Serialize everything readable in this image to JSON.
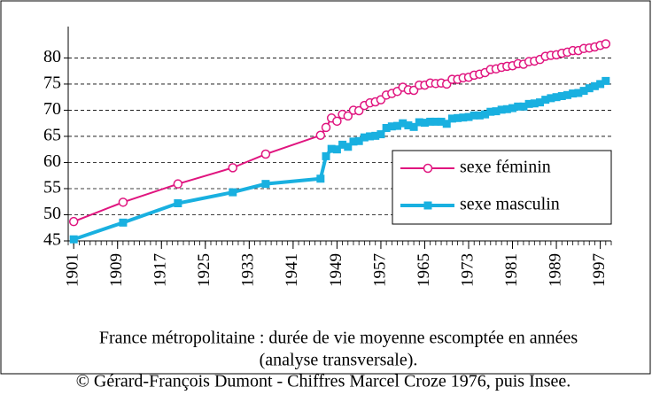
{
  "chart_data": {
    "type": "line",
    "caption": "France métropolitaine : durée de vie moyenne escomptée en années",
    "caption2": "(analyse transversale).",
    "credit": "© Gérard-François Dumont - Chiffres Marcel Croze 1976, puis Insee.",
    "x": [
      1901,
      1910,
      1920,
      1930,
      1936,
      1946,
      1947,
      1948,
      1949,
      1950,
      1951,
      1952,
      1953,
      1954,
      1955,
      1956,
      1957,
      1958,
      1959,
      1960,
      1961,
      1962,
      1963,
      1964,
      1965,
      1966,
      1967,
      1968,
      1969,
      1970,
      1971,
      1972,
      1973,
      1974,
      1975,
      1976,
      1977,
      1978,
      1979,
      1980,
      1981,
      1982,
      1983,
      1984,
      1985,
      1986,
      1987,
      1988,
      1989,
      1990,
      1991,
      1992,
      1993,
      1994,
      1995,
      1996,
      1997,
      1998
    ],
    "series": [
      {
        "name": "sexe féminin",
        "color": "#e0157f",
        "marker": "circle",
        "values": [
          48.7,
          52.4,
          55.9,
          59.0,
          61.6,
          65.2,
          66.7,
          68.5,
          67.9,
          69.2,
          68.9,
          70.0,
          69.9,
          70.9,
          71.4,
          71.6,
          72.0,
          72.9,
          73.2,
          73.6,
          74.4,
          73.9,
          73.8,
          74.8,
          74.8,
          75.2,
          75.1,
          75.2,
          75.0,
          75.9,
          75.9,
          76.2,
          76.3,
          76.7,
          76.9,
          77.2,
          77.8,
          77.9,
          78.2,
          78.4,
          78.5,
          78.9,
          78.8,
          79.3,
          79.4,
          79.7,
          80.3,
          80.5,
          80.6,
          80.9,
          81.1,
          81.4,
          81.4,
          81.8,
          81.9,
          82.1,
          82.4,
          82.7
        ]
      },
      {
        "name": "sexe masculin",
        "color": "#19b0e0",
        "marker": "square",
        "values": [
          45.3,
          48.5,
          52.2,
          54.3,
          55.9,
          56.9,
          61.2,
          62.6,
          62.5,
          63.4,
          63.0,
          64.0,
          64.1,
          64.8,
          65.0,
          65.1,
          65.4,
          66.6,
          66.9,
          67.0,
          67.5,
          67.1,
          66.8,
          67.7,
          67.6,
          67.8,
          67.8,
          67.8,
          67.4,
          68.4,
          68.5,
          68.6,
          68.7,
          69.0,
          69.0,
          69.2,
          69.7,
          69.8,
          70.1,
          70.2,
          70.4,
          70.7,
          70.7,
          71.2,
          71.3,
          71.5,
          72.0,
          72.3,
          72.5,
          72.7,
          72.9,
          73.2,
          73.3,
          73.7,
          74.2,
          74.6,
          75.0,
          75.6
        ]
      }
    ],
    "xlim": [
      1900,
      1999
    ],
    "xticks": [
      1901,
      1909,
      1917,
      1925,
      1933,
      1941,
      1949,
      1957,
      1965,
      1973,
      1981,
      1989,
      1997
    ],
    "ylim": [
      45,
      86
    ],
    "yticks": [
      45,
      50,
      55,
      60,
      65,
      70,
      75,
      80
    ],
    "grid": true,
    "legend": "right"
  }
}
